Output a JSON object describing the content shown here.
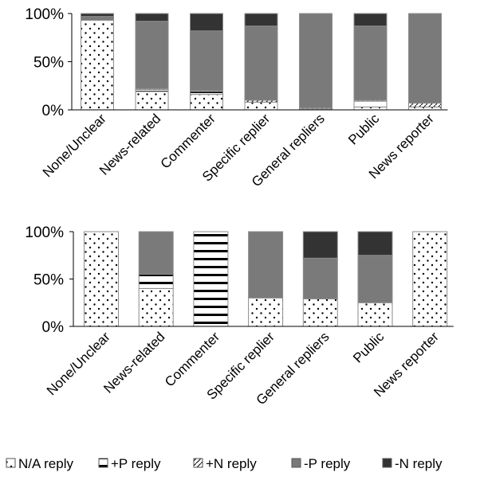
{
  "chart_data": [
    {
      "type": "bar",
      "stacked": true,
      "categories": [
        "None/Unclear",
        "News-related",
        "Commenter",
        "Specific replier",
        "General repliers",
        "Public",
        "News reporter"
      ],
      "ylim": [
        0,
        100
      ],
      "yticks": [
        "0%",
        "50%",
        "100%"
      ],
      "grid": false,
      "series": [
        {
          "name": "N/A reply",
          "values": [
            93,
            19,
            16,
            8,
            1,
            3,
            3
          ]
        },
        {
          "name": "+P reply",
          "values": [
            0,
            2,
            3,
            0,
            0,
            6,
            0
          ]
        },
        {
          "name": "+N reply",
          "values": [
            0,
            1,
            1,
            2,
            1,
            1,
            4
          ]
        },
        {
          "name": "-P reply",
          "values": [
            4,
            70,
            62,
            77,
            98,
            77,
            93
          ]
        },
        {
          "name": "-N reply",
          "values": [
            3,
            8,
            18,
            13,
            0,
            13,
            0
          ]
        }
      ]
    },
    {
      "type": "bar",
      "stacked": true,
      "categories": [
        "None/Unclear",
        "News-related",
        "Commenter",
        "Specific replier",
        "General repliers",
        "Public",
        "News reporter"
      ],
      "ylim": [
        0,
        100
      ],
      "yticks": [
        "0%",
        "50%",
        "100%"
      ],
      "grid": false,
      "series": [
        {
          "name": "N/A reply",
          "values": [
            100,
            40,
            0,
            30,
            29,
            25,
            100
          ]
        },
        {
          "name": "+P reply",
          "values": [
            0,
            15,
            100,
            0,
            0,
            0,
            0
          ]
        },
        {
          "name": "+N reply",
          "values": [
            0,
            0,
            0,
            0,
            0,
            0,
            0
          ]
        },
        {
          "name": "-P reply",
          "values": [
            0,
            45,
            0,
            70,
            43,
            50,
            0
          ]
        },
        {
          "name": "-N reply",
          "values": [
            0,
            0,
            0,
            0,
            28,
            25,
            0
          ]
        }
      ]
    }
  ],
  "legend": {
    "placement": "bottom",
    "items": [
      {
        "label": "N/A reply",
        "key": "na"
      },
      {
        "label": "+P reply",
        "key": "pp"
      },
      {
        "label": "+N reply",
        "key": "pn"
      },
      {
        "label": "-P reply",
        "key": "mp"
      },
      {
        "label": "-N reply",
        "key": "mn"
      }
    ]
  },
  "colors": {
    "na": "#ffffff",
    "pp": "#ffffff",
    "pn": "#ffffff",
    "mp": "#7a7a7a",
    "mn": "#333333",
    "edge": "#8c8c8c",
    "axis": "#000000"
  }
}
